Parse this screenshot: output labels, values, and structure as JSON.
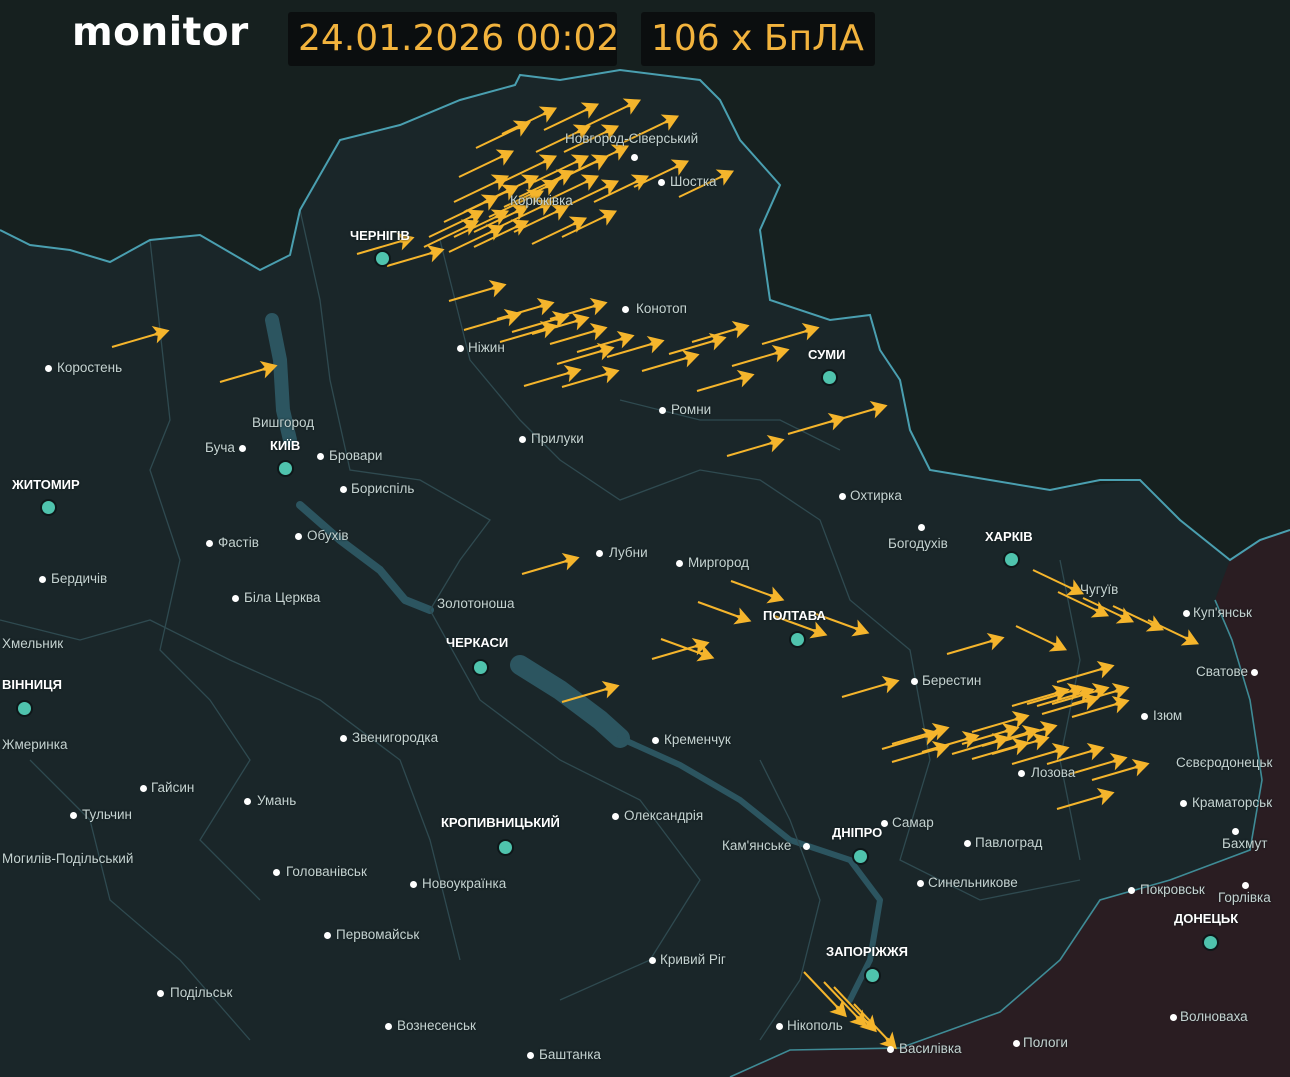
{
  "header": {
    "brand": "monitor",
    "datetime": "24.01.2026 00:02",
    "threat_count": "106 x БпЛА"
  },
  "colors": {
    "background": "#1a2629",
    "border": "#4a9fb0",
    "occupied": "#2a1d22",
    "drone": "#f5b52c",
    "major_city_dot": "#4fc3ad",
    "accent_text": "#f2b33d"
  },
  "drone_icon": "shahed-drone-icon",
  "drone_count": 106,
  "cities": [
    {
      "name": "ЧЕРНІГІВ",
      "major": true
    },
    {
      "name": "СУМИ",
      "major": true
    },
    {
      "name": "КИЇВ",
      "major": true
    },
    {
      "name": "ЖИТОМИР",
      "major": true
    },
    {
      "name": "ХАРКІВ",
      "major": true
    },
    {
      "name": "ПОЛТАВА",
      "major": true
    },
    {
      "name": "ЧЕРКАСИ",
      "major": true
    },
    {
      "name": "ВІННИЦЯ",
      "major": true
    },
    {
      "name": "КРОПИВНИЦЬКИЙ",
      "major": true
    },
    {
      "name": "ДНІПРО",
      "major": true
    },
    {
      "name": "ЗАПОРІЖЖЯ",
      "major": true
    },
    {
      "name": "ДОНЕЦЬК",
      "major": true
    },
    {
      "name": "Новгород-Сіверський"
    },
    {
      "name": "Шостка"
    },
    {
      "name": "Корюківка"
    },
    {
      "name": "Конотоп"
    },
    {
      "name": "Ніжин"
    },
    {
      "name": "Коростень"
    },
    {
      "name": "Ромни"
    },
    {
      "name": "Вишгород"
    },
    {
      "name": "Буча"
    },
    {
      "name": "Бровари"
    },
    {
      "name": "Прилуки"
    },
    {
      "name": "Бориспіль"
    },
    {
      "name": "Охтирка"
    },
    {
      "name": "Богодухів"
    },
    {
      "name": "Фастів"
    },
    {
      "name": "Обухів"
    },
    {
      "name": "Лубни"
    },
    {
      "name": "Миргород"
    },
    {
      "name": "Чугуїв"
    },
    {
      "name": "Бердичів"
    },
    {
      "name": "Біла Церква"
    },
    {
      "name": "Золотоноша"
    },
    {
      "name": "Куп'янськ"
    },
    {
      "name": "Хмельник"
    },
    {
      "name": "Сватове"
    },
    {
      "name": "Берестин"
    },
    {
      "name": "Ізюм"
    },
    {
      "name": "Жмеринка"
    },
    {
      "name": "Кременчук"
    },
    {
      "name": "Звенигородка"
    },
    {
      "name": "Лозова"
    },
    {
      "name": "Гайсин"
    },
    {
      "name": "Сєвєродонецьк"
    },
    {
      "name": "Умань"
    },
    {
      "name": "Краматорськ"
    },
    {
      "name": "Тульчин"
    },
    {
      "name": "Олександрія"
    },
    {
      "name": "Самар"
    },
    {
      "name": "Бахмут"
    },
    {
      "name": "Кам'янське"
    },
    {
      "name": "Павлоград"
    },
    {
      "name": "Могилів-Подільський"
    },
    {
      "name": "Голованівськ"
    },
    {
      "name": "Синельникове"
    },
    {
      "name": "Новоукраїнка"
    },
    {
      "name": "Покровськ"
    },
    {
      "name": "Горлівка"
    },
    {
      "name": "Первомайськ"
    },
    {
      "name": "Кривий Ріг"
    },
    {
      "name": "Подільськ"
    },
    {
      "name": "Нікополь"
    },
    {
      "name": "Волноваха"
    },
    {
      "name": "Вознесенськ"
    },
    {
      "name": "Пологи"
    },
    {
      "name": "Василівка"
    },
    {
      "name": "Баштанка"
    }
  ]
}
